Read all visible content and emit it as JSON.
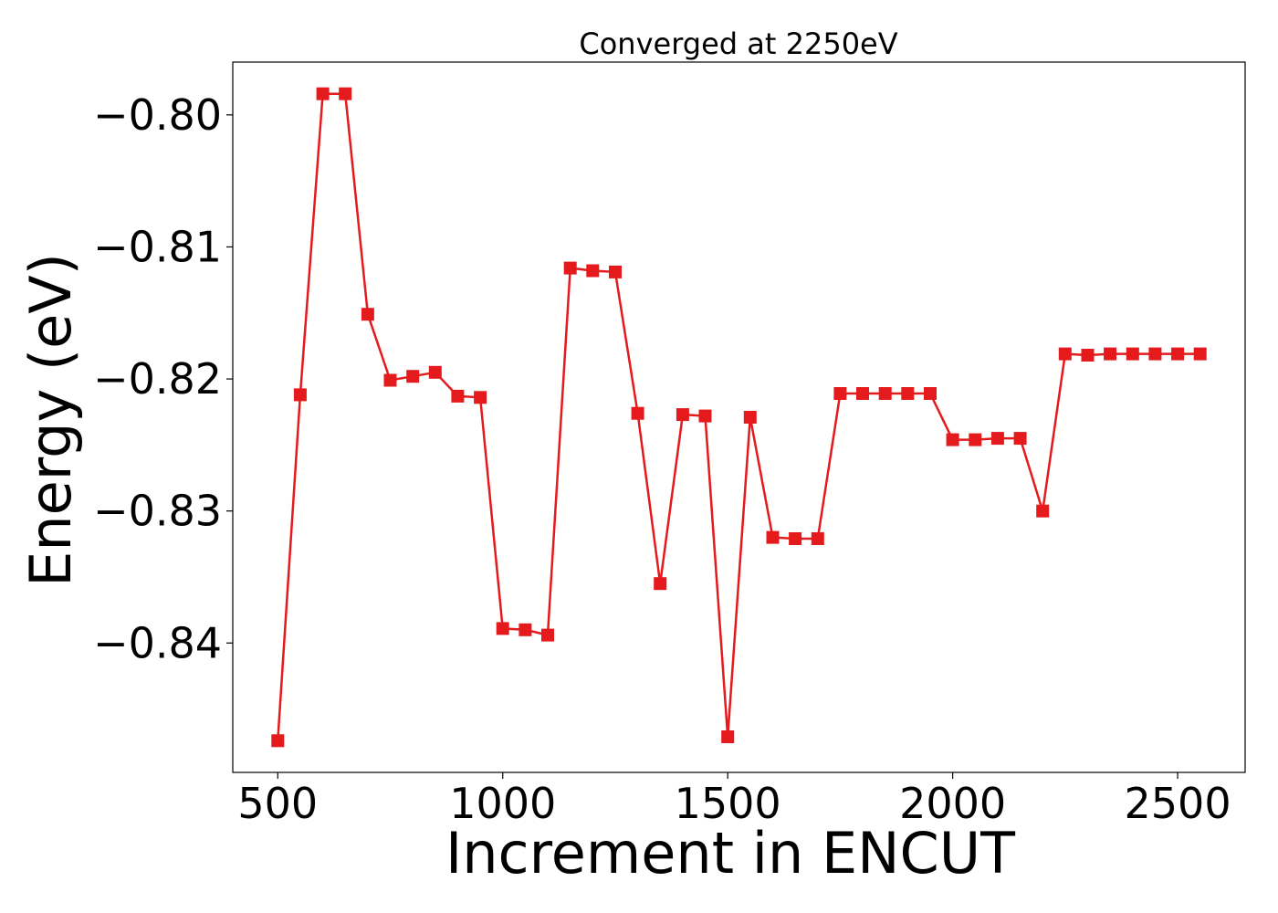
{
  "chart_data": {
    "type": "line",
    "title": "Converged at 2250eV",
    "xlabel": "Increment in ENCUT",
    "ylabel": "Energy (eV)",
    "xlim": [
      400,
      2650
    ],
    "ylim": [
      -0.8498,
      -0.796
    ],
    "xticks": [
      500,
      1000,
      1500,
      2000,
      2500
    ],
    "xtick_labels": [
      "500",
      "1000",
      "1500",
      "2000",
      "2500"
    ],
    "yticks": [
      -0.8,
      -0.81,
      -0.82,
      -0.83,
      -0.84
    ],
    "ytick_labels": [
      "−0.80",
      "−0.81",
      "−0.82",
      "−0.83",
      "−0.84"
    ],
    "grid": false,
    "legend": "none",
    "series": [
      {
        "color": "#e41a1c",
        "marker": "square",
        "x": [
          500,
          550,
          600,
          650,
          700,
          750,
          800,
          850,
          900,
          950,
          1000,
          1050,
          1100,
          1150,
          1200,
          1250,
          1300,
          1350,
          1400,
          1450,
          1500,
          1550,
          1600,
          1650,
          1700,
          1750,
          1800,
          1850,
          1900,
          1950,
          2000,
          2050,
          2100,
          2150,
          2200,
          2250,
          2300,
          2350,
          2400,
          2450,
          2500,
          2550
        ],
        "y": [
          -0.8474,
          -0.8212,
          -0.7984,
          -0.7984,
          -0.8151,
          -0.8201,
          -0.8198,
          -0.8195,
          -0.8213,
          -0.8214,
          -0.8389,
          -0.839,
          -0.8394,
          -0.8116,
          -0.8118,
          -0.8119,
          -0.8226,
          -0.8355,
          -0.8227,
          -0.8228,
          -0.8471,
          -0.8229,
          -0.832,
          -0.8321,
          -0.8321,
          -0.8211,
          -0.8211,
          -0.8211,
          -0.8211,
          -0.8211,
          -0.8246,
          -0.8246,
          -0.8245,
          -0.8245,
          -0.83,
          -0.8181,
          -0.8182,
          -0.8181,
          -0.8181,
          -0.8181,
          -0.8181,
          -0.8181
        ]
      }
    ]
  }
}
